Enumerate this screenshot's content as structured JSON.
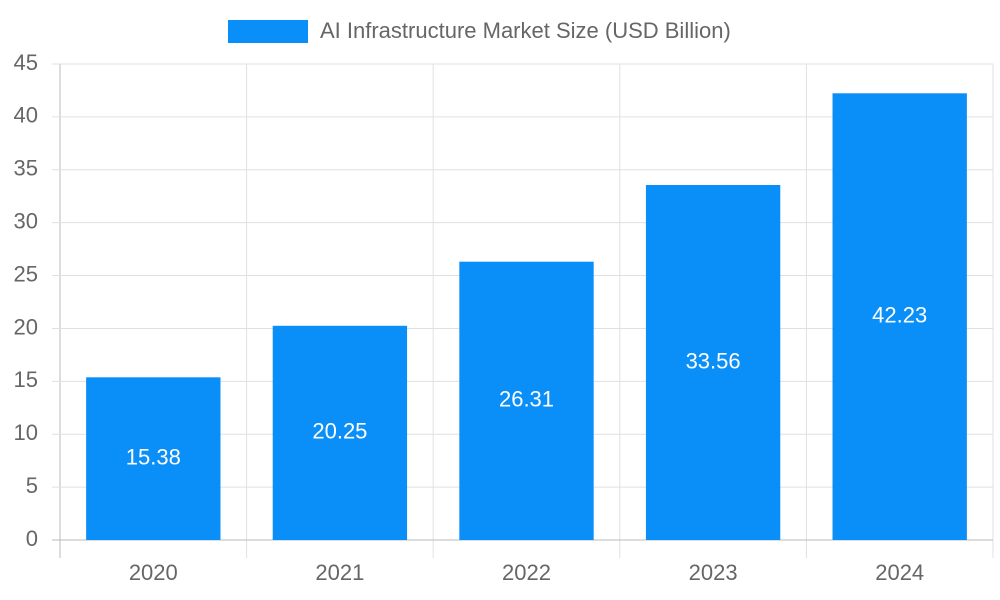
{
  "chart_data": {
    "type": "bar",
    "categories": [
      "2020",
      "2021",
      "2022",
      "2023",
      "2024"
    ],
    "series": [
      {
        "name": "AI Infrastructure Market Size (USD Billion)",
        "color": "#0a8ef8",
        "values": [
          15.38,
          20.25,
          26.31,
          33.56,
          42.23
        ]
      }
    ],
    "ylim": [
      0,
      45
    ],
    "yticks": [
      0,
      5,
      10,
      15,
      20,
      25,
      30,
      35,
      40,
      45
    ],
    "grid": true,
    "legend": "top",
    "data_labels": true
  }
}
